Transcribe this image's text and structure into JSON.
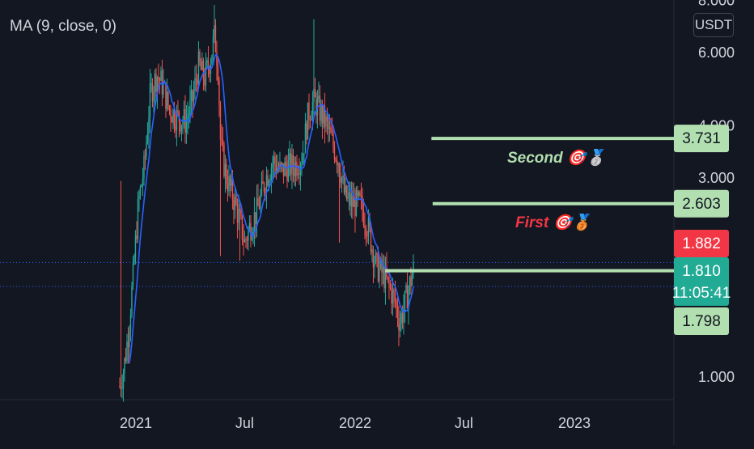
{
  "indicator": {
    "label": "MA (9, close, 0)"
  },
  "currency": {
    "label": "USDT"
  },
  "colors": {
    "background": "#131722",
    "candle_up": "#26a69a",
    "candle_down": "#ef5350",
    "ma_line": "#2962ff",
    "target_line": "#b2dfb0",
    "red_badge": "#f23645",
    "teal_badge": "#22ab94",
    "dotted_line": "#2962ff",
    "axis_text": "#d1d4dc"
  },
  "annotations": [
    {
      "name": "second-target",
      "text": "Second",
      "emojis": "🎯🥈",
      "color": "#b2dfb0"
    },
    {
      "name": "first-target",
      "text": "First",
      "emojis": "🎯🥉",
      "color": "#f23645"
    }
  ],
  "chart_data": {
    "type": "candlestick",
    "scale": "log",
    "ylim": [
      0.9,
      8.0
    ],
    "y_ticks": [
      "1.000",
      "3.000",
      "4.000",
      "6.000",
      "8.000"
    ],
    "x_ticks": [
      "2021",
      "Jul",
      "2022",
      "Jul",
      "2023"
    ],
    "x_tick_dates": [
      "2021-01-01",
      "2021-07-01",
      "2022-01-01",
      "2022-07-01",
      "2023-01-01"
    ],
    "xlim": [
      "2020-11-15",
      "2023-07-01"
    ],
    "price_levels": [
      {
        "name": "second-target",
        "value": 3.731,
        "label": "3.731",
        "style": "target",
        "start": "2022-05-08"
      },
      {
        "name": "first-target",
        "value": 2.603,
        "label": "2.603",
        "style": "target",
        "start": "2022-05-10"
      },
      {
        "name": "level-1798",
        "value": 1.798,
        "label": "1.798",
        "style": "target",
        "start": "2022-02-20"
      }
    ],
    "price_badges": [
      {
        "name": "high-badge",
        "value": 1.882,
        "label": "1.882",
        "color": "#f23645"
      },
      {
        "name": "last-price-badge",
        "value": 1.81,
        "label": "1.810",
        "countdown": "11:05:41",
        "color": "#22ab94"
      },
      {
        "name": "level-badge",
        "value": 1.798,
        "label": "1.798",
        "color": "#b2dfb0"
      }
    ],
    "ma_period": 9,
    "price_path": [
      [
        "2020-12-05",
        0.95
      ],
      [
        "2020-12-12",
        1.05
      ],
      [
        "2020-12-20",
        1.3
      ],
      [
        "2020-12-28",
        1.8
      ],
      [
        "2021-01-05",
        2.6
      ],
      [
        "2021-01-15",
        3.2
      ],
      [
        "2021-01-25",
        4.8
      ],
      [
        "2021-02-05",
        5.3
      ],
      [
        "2021-02-15",
        5.0
      ],
      [
        "2021-02-25",
        4.4
      ],
      [
        "2021-03-10",
        4.2
      ],
      [
        "2021-03-25",
        4.1
      ],
      [
        "2021-04-05",
        4.6
      ],
      [
        "2021-04-15",
        5.6
      ],
      [
        "2021-04-25",
        5.2
      ],
      [
        "2021-05-05",
        5.8
      ],
      [
        "2021-05-12",
        6.6
      ],
      [
        "2021-05-18",
        5.5
      ],
      [
        "2021-05-22",
        3.6
      ],
      [
        "2021-06-01",
        3.0
      ],
      [
        "2021-06-12",
        2.7
      ],
      [
        "2021-06-22",
        2.4
      ],
      [
        "2021-07-01",
        2.1
      ],
      [
        "2021-07-10",
        2.3
      ],
      [
        "2021-07-22",
        2.5
      ],
      [
        "2021-08-05",
        3.0
      ],
      [
        "2021-08-18",
        3.3
      ],
      [
        "2021-08-30",
        3.1
      ],
      [
        "2021-09-10",
        3.2
      ],
      [
        "2021-09-22",
        3.2
      ],
      [
        "2021-10-05",
        3.4
      ],
      [
        "2021-10-15",
        4.3
      ],
      [
        "2021-10-25",
        4.6
      ],
      [
        "2021-11-05",
        4.3
      ],
      [
        "2021-11-15",
        4.0
      ],
      [
        "2021-11-25",
        3.6
      ],
      [
        "2021-12-05",
        3.3
      ],
      [
        "2021-12-15",
        2.7
      ],
      [
        "2021-12-28",
        2.6
      ],
      [
        "2022-01-10",
        2.6
      ],
      [
        "2022-01-22",
        2.3
      ],
      [
        "2022-02-05",
        1.85
      ],
      [
        "2022-02-18",
        1.75
      ],
      [
        "2022-03-02",
        1.6
      ],
      [
        "2022-03-10",
        1.5
      ],
      [
        "2022-03-16",
        1.35
      ],
      [
        "2022-03-22",
        1.45
      ],
      [
        "2022-04-01",
        1.65
      ],
      [
        "2022-04-08",
        1.81
      ]
    ]
  }
}
